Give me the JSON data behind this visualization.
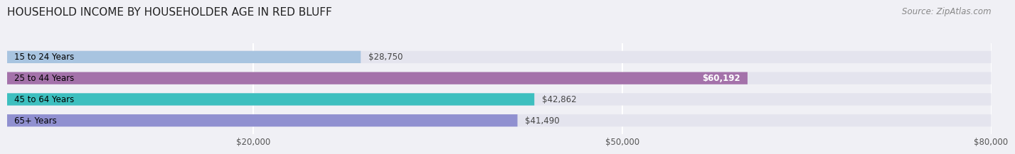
{
  "title": "HOUSEHOLD INCOME BY HOUSEHOLDER AGE IN RED BLUFF",
  "source_text": "Source: ZipAtlas.com",
  "categories": [
    "15 to 24 Years",
    "25 to 44 Years",
    "45 to 64 Years",
    "65+ Years"
  ],
  "values": [
    28750,
    60192,
    42862,
    41490
  ],
  "bar_colors": [
    "#a8c4e0",
    "#a472aa",
    "#3dbfbf",
    "#9090d0"
  ],
  "bar_labels": [
    "$28,750",
    "$60,192",
    "$42,862",
    "$41,490"
  ],
  "label_inside": [
    false,
    true,
    false,
    false
  ],
  "xlim": [
    0,
    80000
  ],
  "xticks": [
    20000,
    50000,
    80000
  ],
  "xtick_labels": [
    "$20,000",
    "$50,000",
    "$80,000"
  ],
  "background_color": "#f0f0f5",
  "bar_bg_color": "#e4e4ee",
  "title_fontsize": 11,
  "source_fontsize": 8.5,
  "label_fontsize": 8.5,
  "cat_fontsize": 8.5,
  "xtick_fontsize": 8.5
}
